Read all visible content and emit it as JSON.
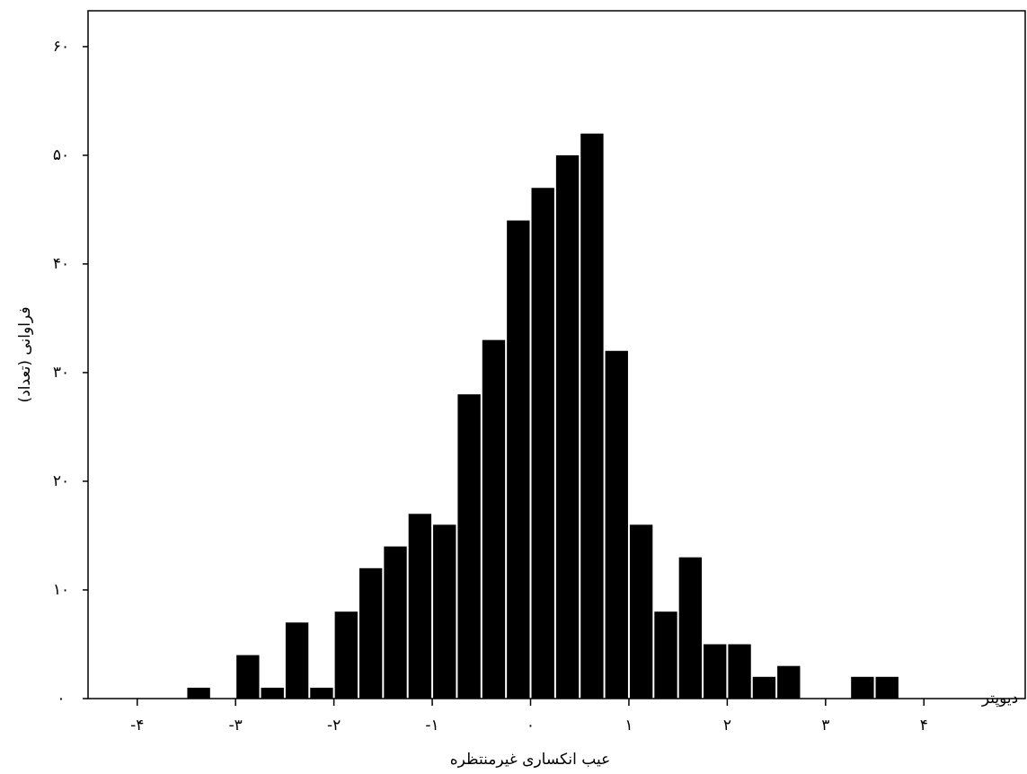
{
  "chart_data": {
    "type": "histogram",
    "x_label": "عیب انکساری غیرمنتظره",
    "y_label": "فراوانی (تعداد)",
    "annotation": "دیوپتر",
    "bins": [
      -3.5,
      -3.25,
      -3,
      -2.75,
      -2.5,
      -2.25,
      -2,
      -1.75,
      -1.5,
      -1.25,
      -1,
      -0.75,
      -0.5,
      -0.25,
      0,
      0.25,
      0.5,
      0.75,
      1,
      1.25,
      1.5,
      1.75,
      2,
      2.25,
      2.5,
      2.75,
      3,
      3.25,
      3.5,
      3.75
    ],
    "counts": [
      1,
      0,
      4,
      1,
      7,
      1,
      8,
      12,
      14,
      17,
      16,
      28,
      33,
      44,
      47,
      50,
      52,
      32,
      16,
      8,
      13,
      5,
      5,
      2,
      3,
      0,
      0,
      2,
      2
    ],
    "color": "#000000",
    "xlim": [
      -4.5,
      4.5
    ],
    "xticks": [
      {
        "value": -4,
        "label": "-۴"
      },
      {
        "value": -3,
        "label": "-۳"
      },
      {
        "value": -2,
        "label": "-۲"
      },
      {
        "value": -1,
        "label": "-۱"
      },
      {
        "value": 0,
        "label": "۰"
      },
      {
        "value": 1,
        "label": "۱"
      },
      {
        "value": 2,
        "label": "۲"
      },
      {
        "value": 3,
        "label": "۳"
      },
      {
        "value": 4,
        "label": "۴"
      }
    ],
    "ylim": [
      0,
      63.3
    ],
    "yticks": [
      {
        "value": 0,
        "label": "۰"
      },
      {
        "value": 10,
        "label": "۱۰"
      },
      {
        "value": 20,
        "label": "۲۰"
      },
      {
        "value": 30,
        "label": "۳۰"
      },
      {
        "value": 40,
        "label": "۴۰"
      },
      {
        "value": 50,
        "label": "۵۰"
      },
      {
        "value": 60,
        "label": "۶۰"
      }
    ]
  }
}
